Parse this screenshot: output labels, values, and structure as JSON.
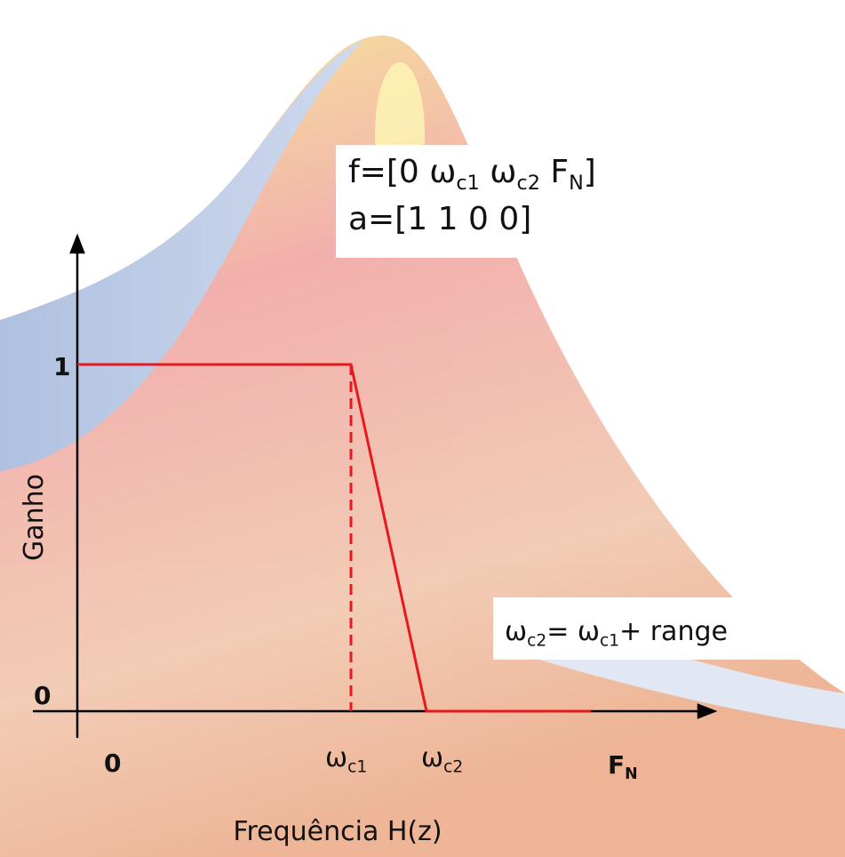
{
  "formula_box": {
    "line1": [
      {
        "t": "f=[0 ω"
      },
      {
        "sub": "c1"
      },
      {
        "t": " ω"
      },
      {
        "sub": "c2"
      },
      {
        "t": " F"
      },
      {
        "sub": "N"
      },
      {
        "t": "]"
      }
    ],
    "line2": "a=[1 1 0 0]"
  },
  "range_box": {
    "line": [
      {
        "t": "ω"
      },
      {
        "sub": "c2"
      },
      {
        "t": "= ω"
      },
      {
        "sub": "c1"
      },
      {
        "t": "+ range"
      }
    ]
  },
  "y_axis": {
    "title": "Ganho",
    "top_label": "1",
    "bottom_label": "0"
  },
  "x_axis": {
    "title": "Frequência H(z)",
    "origin_label": "0",
    "wc1_label": [
      {
        "t": "ω"
      },
      {
        "sub": "c1"
      }
    ],
    "wc2_label": [
      {
        "t": "ω"
      },
      {
        "sub": "c2"
      }
    ],
    "fn_label": [
      {
        "t": "F"
      },
      {
        "sub": "N"
      }
    ]
  }
}
